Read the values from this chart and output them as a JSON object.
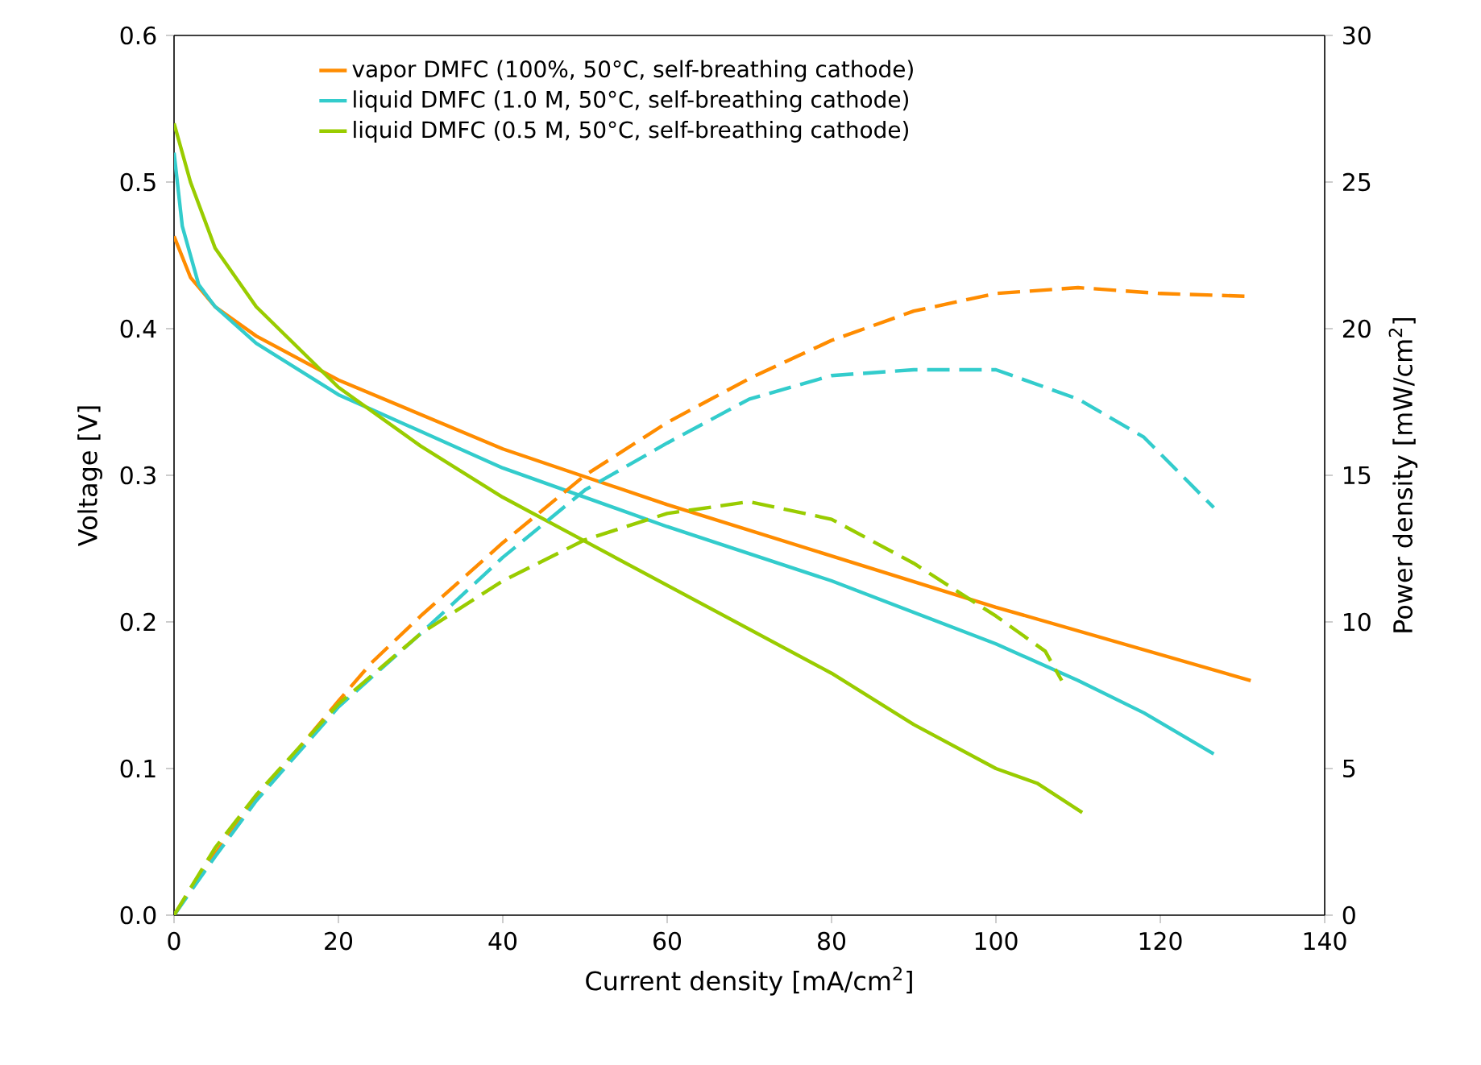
{
  "chart_data": {
    "type": "line",
    "xlabel": "Current density [mA/cm$^{2}$]",
    "ylabel": "Voltage [V]",
    "y2label": "Power density [mW/cm$^{2}$]",
    "xlim": [
      0,
      140
    ],
    "xticks": [
      0,
      20,
      40,
      60,
      80,
      100,
      120,
      140
    ],
    "ylim": [
      0,
      0.6
    ],
    "yticks": [
      {
        "value": 0,
        "label": "0.0"
      },
      0.1,
      0.2,
      0.3,
      0.4,
      0.5,
      0.6
    ],
    "y2lim": [
      0,
      30
    ],
    "y2ticks": [
      0,
      5,
      10,
      15,
      20,
      25,
      30
    ],
    "legend": "top left",
    "grid": false,
    "marker": "none",
    "series": [
      {
        "name": "vapor DMFC (100%, 50°C, self-breathing cathode)",
        "color": "#ff8c00",
        "x": [
          0,
          2,
          5,
          10,
          20,
          40,
          60,
          80,
          100,
          131
        ],
        "values": [
          0.463,
          0.435,
          0.415,
          0.395,
          0.365,
          0.318,
          0.28,
          0.245,
          0.21,
          0.16
        ]
      },
      {
        "name": "liquid DMFC (1.0 M, 50°C, self-breathing cathode)",
        "color": "#33cccc",
        "x": [
          0,
          1,
          3,
          5,
          10,
          20,
          40,
          60,
          80,
          100,
          110,
          118,
          126.5
        ],
        "values": [
          0.52,
          0.47,
          0.43,
          0.415,
          0.39,
          0.355,
          0.305,
          0.265,
          0.228,
          0.185,
          0.16,
          0.138,
          0.11
        ]
      },
      {
        "name": "liquid DMFC (0.5 M, 50°C, self-breathing cathode)",
        "color": "#99cc00",
        "x": [
          0,
          2,
          5,
          10,
          20,
          30,
          40,
          50,
          60,
          70,
          80,
          90,
          100,
          105,
          110.5
        ],
        "values": [
          0.54,
          0.5,
          0.455,
          0.415,
          0.36,
          0.32,
          0.285,
          0.255,
          0.225,
          0.195,
          0.165,
          0.13,
          0.1,
          0.09,
          0.07
        ]
      },
      {
        "color": "#ff8c00",
        "axis": "y2",
        "line_style": "dashed",
        "x": [
          0,
          5,
          10,
          20,
          24,
          30,
          40,
          50,
          60,
          70,
          80,
          90,
          100,
          110,
          120,
          131
        ],
        "values": [
          0,
          2.1,
          3.95,
          7.3,
          8.6,
          10.2,
          12.7,
          15,
          16.8,
          18.3,
          19.6,
          20.6,
          21.2,
          21.4,
          21.2,
          21.1
        ]
      },
      {
        "color": "#33cccc",
        "axis": "y2",
        "line_style": "dashed",
        "x": [
          0,
          5,
          10,
          20,
          30,
          40,
          50,
          60,
          70,
          80,
          90,
          100,
          110,
          118,
          126.5
        ],
        "values": [
          0,
          2,
          3.9,
          7.1,
          9.6,
          12.2,
          14.5,
          16.1,
          17.6,
          18.4,
          18.6,
          18.6,
          17.6,
          16.3,
          13.9
        ]
      },
      {
        "color": "#99cc00",
        "axis": "y2",
        "line_style": "dashed",
        "x": [
          0,
          5,
          10,
          20,
          30,
          40,
          50,
          60,
          70,
          80,
          90,
          100,
          106,
          108
        ],
        "values": [
          0,
          2.3,
          4.1,
          7.2,
          9.6,
          11.4,
          12.8,
          13.7,
          14.1,
          13.5,
          12,
          10.2,
          9,
          8
        ]
      }
    ]
  }
}
